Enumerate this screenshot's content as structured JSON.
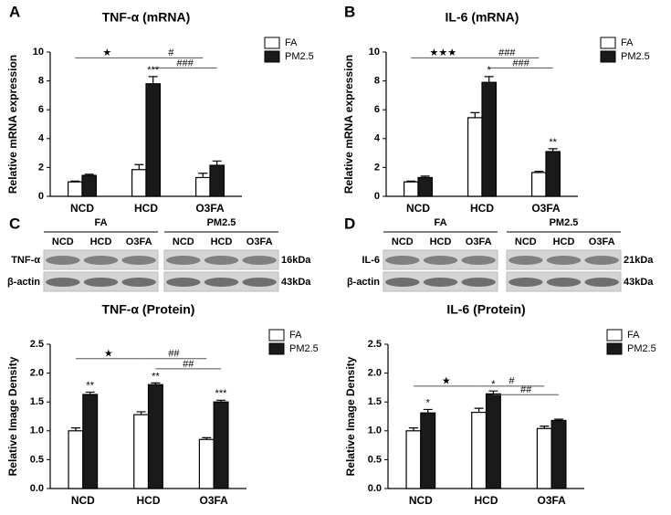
{
  "panel_labels": [
    "A",
    "B",
    "C",
    "D"
  ],
  "chart_data": [
    {
      "type": "bar",
      "title": "TNF-α (mRNA)",
      "y_label": "Relative mRNA expression",
      "categories": [
        "NCD",
        "HCD",
        "O3FA"
      ],
      "series": [
        {
          "name": "FA",
          "color": "#ffffff",
          "values": [
            1.0,
            1.85,
            1.3
          ],
          "errors": [
            0.05,
            0.35,
            0.3
          ]
        },
        {
          "name": "PM2.5",
          "color": "#1a1a1a",
          "values": [
            1.45,
            7.8,
            2.15
          ],
          "errors": [
            0.08,
            0.5,
            0.3
          ]
        }
      ],
      "ylim": [
        0,
        10
      ],
      "yticks": [
        0,
        2,
        4,
        6,
        8,
        10
      ],
      "legend": "upper right",
      "annotations": [
        "★",
        "#",
        "###",
        "***"
      ]
    },
    {
      "type": "bar",
      "title": "IL-6 (mRNA)",
      "y_label": "Relative mRNA expression",
      "categories": [
        "NCD",
        "HCD",
        "O3FA"
      ],
      "series": [
        {
          "name": "FA",
          "color": "#ffffff",
          "values": [
            1.0,
            5.45,
            1.65
          ],
          "errors": [
            0.05,
            0.35,
            0.08
          ]
        },
        {
          "name": "PM2.5",
          "color": "#1a1a1a",
          "values": [
            1.3,
            7.9,
            3.1
          ],
          "errors": [
            0.1,
            0.4,
            0.2
          ]
        }
      ],
      "ylim": [
        0,
        10
      ],
      "yticks": [
        0,
        2,
        4,
        6,
        8,
        10
      ],
      "legend": "upper right",
      "annotations": [
        "★★★",
        "###",
        "###",
        "*",
        "**"
      ]
    },
    {
      "type": "bar",
      "title": "TNF-α (Protein)",
      "y_label": "Relative Image Density",
      "categories": [
        "NCD",
        "HCD",
        "O3FA"
      ],
      "series": [
        {
          "name": "FA",
          "color": "#ffffff",
          "values": [
            1.0,
            1.28,
            0.85
          ],
          "errors": [
            0.05,
            0.05,
            0.03
          ]
        },
        {
          "name": "PM2.5",
          "color": "#1a1a1a",
          "values": [
            1.63,
            1.8,
            1.5
          ],
          "errors": [
            0.04,
            0.03,
            0.03
          ]
        }
      ],
      "ylim": [
        0,
        2.5
      ],
      "yticks": [
        {
          "value": 0,
          "label": "0.0"
        },
        {
          "value": 0.5,
          "label": "0.5"
        },
        {
          "value": 1,
          "label": "1.0"
        },
        {
          "value": 1.5,
          "label": "1.5"
        },
        {
          "value": 2,
          "label": "2.0"
        },
        {
          "value": 2.5,
          "label": "2.5"
        }
      ],
      "legend": "upper right",
      "annotations": [
        "★",
        "##",
        "##",
        "**",
        "**",
        "***"
      ]
    },
    {
      "type": "bar",
      "title": "IL-6 (Protein)",
      "y_label": "Relative Image Density",
      "categories": [
        "NCD",
        "HCD",
        "O3FA"
      ],
      "series": [
        {
          "name": "FA",
          "color": "#ffffff",
          "values": [
            1.0,
            1.32,
            1.04
          ],
          "errors": [
            0.05,
            0.07,
            0.04
          ]
        },
        {
          "name": "PM2.5",
          "color": "#1a1a1a",
          "values": [
            1.31,
            1.64,
            1.18
          ],
          "errors": [
            0.06,
            0.05,
            0.02
          ]
        }
      ],
      "ylim": [
        0,
        2.5
      ],
      "yticks": [
        {
          "value": 0,
          "label": "0.0"
        },
        {
          "value": 0.5,
          "label": "0.5"
        },
        {
          "value": 1,
          "label": "1.0"
        },
        {
          "value": 1.5,
          "label": "1.5"
        },
        {
          "value": 2,
          "label": "2.0"
        },
        {
          "value": 2.5,
          "label": "2.5"
        }
      ],
      "legend": "upper right",
      "annotations": [
        "★",
        "#",
        "##",
        "*",
        "*"
      ]
    }
  ],
  "blots": [
    {
      "groups": [
        "FA",
        "PM2.5"
      ],
      "lanes": [
        "NCD",
        "HCD",
        "O3FA"
      ],
      "rows": [
        {
          "label": "TNF-α",
          "size": "16kDa"
        },
        {
          "label": "β-actin",
          "size": "43kDa"
        }
      ]
    },
    {
      "groups": [
        "FA",
        "PM2.5"
      ],
      "lanes": [
        "NCD",
        "HCD",
        "O3FA"
      ],
      "rows": [
        {
          "label": "IL-6",
          "size": "21kDa"
        },
        {
          "label": "β-actin",
          "size": "43kDa"
        }
      ]
    }
  ]
}
